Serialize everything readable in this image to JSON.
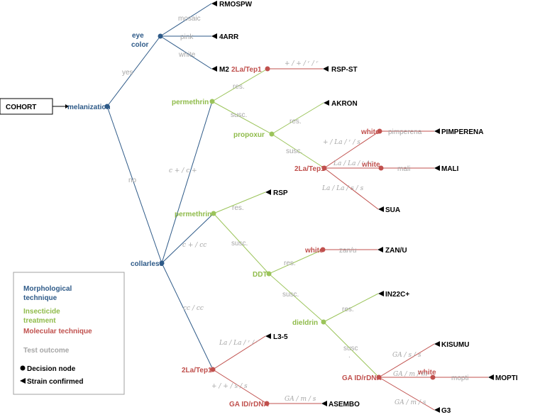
{
  "root": "COHORT",
  "nodes": {
    "melanization": "melanization",
    "eye_color_1": "eye",
    "eye_color_2": "color",
    "collarless": "collarless",
    "permethrin_1": "permethrin",
    "permethrin_2": "permethrin",
    "propoxur": "propoxur",
    "ddt": "DDT",
    "dieldrin": "dieldrin",
    "tep_1": "2La/Tep1",
    "tep_2": "2La/Tep1",
    "tep_3": "2La/Tep1",
    "white_1": "white",
    "white_2": "white",
    "white_3": "white",
    "white_4": "white",
    "gaid_1": "GA ID/rDNA",
    "gaid_2": "GA ID/rDNA"
  },
  "outcomes": {
    "mosaic": "mosaic",
    "pink": "pink",
    "white": "white",
    "yes": "yes",
    "no": "no",
    "res_1": "res.",
    "susc_1": "susc.",
    "res_2": "res.",
    "susc_2": "susc.",
    "res_3": "res.",
    "susc_3": "susc.",
    "res_4": "res.",
    "susc_4": "susc.",
    "res_5": "res.",
    "susc_5": "susc",
    "susc_5_dot": ".",
    "pimperena": "pimperena",
    "mali": "mali",
    "zanu": "zan/u",
    "mopti": "mopti",
    "cc_1": "c + / c +",
    "cc_2": "c + / cc",
    "cc_3": "cc / cc",
    "g_tep1": "+ / + / ʳ / ʳ",
    "g_pim": "+ / La / ʳ / s",
    "g_mali": "La / La / ʳ / ʳ",
    "g_sua": "La / La / s / s",
    "g_l35": "La / La / ʳ / ʳ",
    "g_asembo_tep": "+ / + / s / s",
    "g_asembo": "GA / m / s",
    "g_kisumu": "GA / s / s",
    "g_mopti": "GA / m / m",
    "g_g3": "GA / m / s"
  },
  "strains": {
    "rmospw": "RMOSPW",
    "arr": "4ARR",
    "m2": "M2",
    "rspst": "RSP-ST",
    "akron": "AKRON",
    "pimperena": "PIMPERENA",
    "mali": "MALI",
    "sua": "SUA",
    "rsp": "RSP",
    "zanu": "ZAN/U",
    "in22c": "IN22C+",
    "l35": "L3-5",
    "asembo": "ASEMBO",
    "kisumu": "KISUMU",
    "mopti": "MOPTI",
    "g3": "G3"
  },
  "legend": {
    "morph_1": "Morphological",
    "morph_2": "technique",
    "insect_1": "Insecticide",
    "insect_2": "treatment",
    "molecular": "Molecular technique",
    "test": "Test outcome",
    "decision": "Decision node",
    "strain": "Strain confirmed"
  },
  "colors": {
    "morphological": "#2e5a88",
    "insecticide": "#9bc45a",
    "molecular": "#c0504d",
    "outcome": "#a6a6a6"
  }
}
